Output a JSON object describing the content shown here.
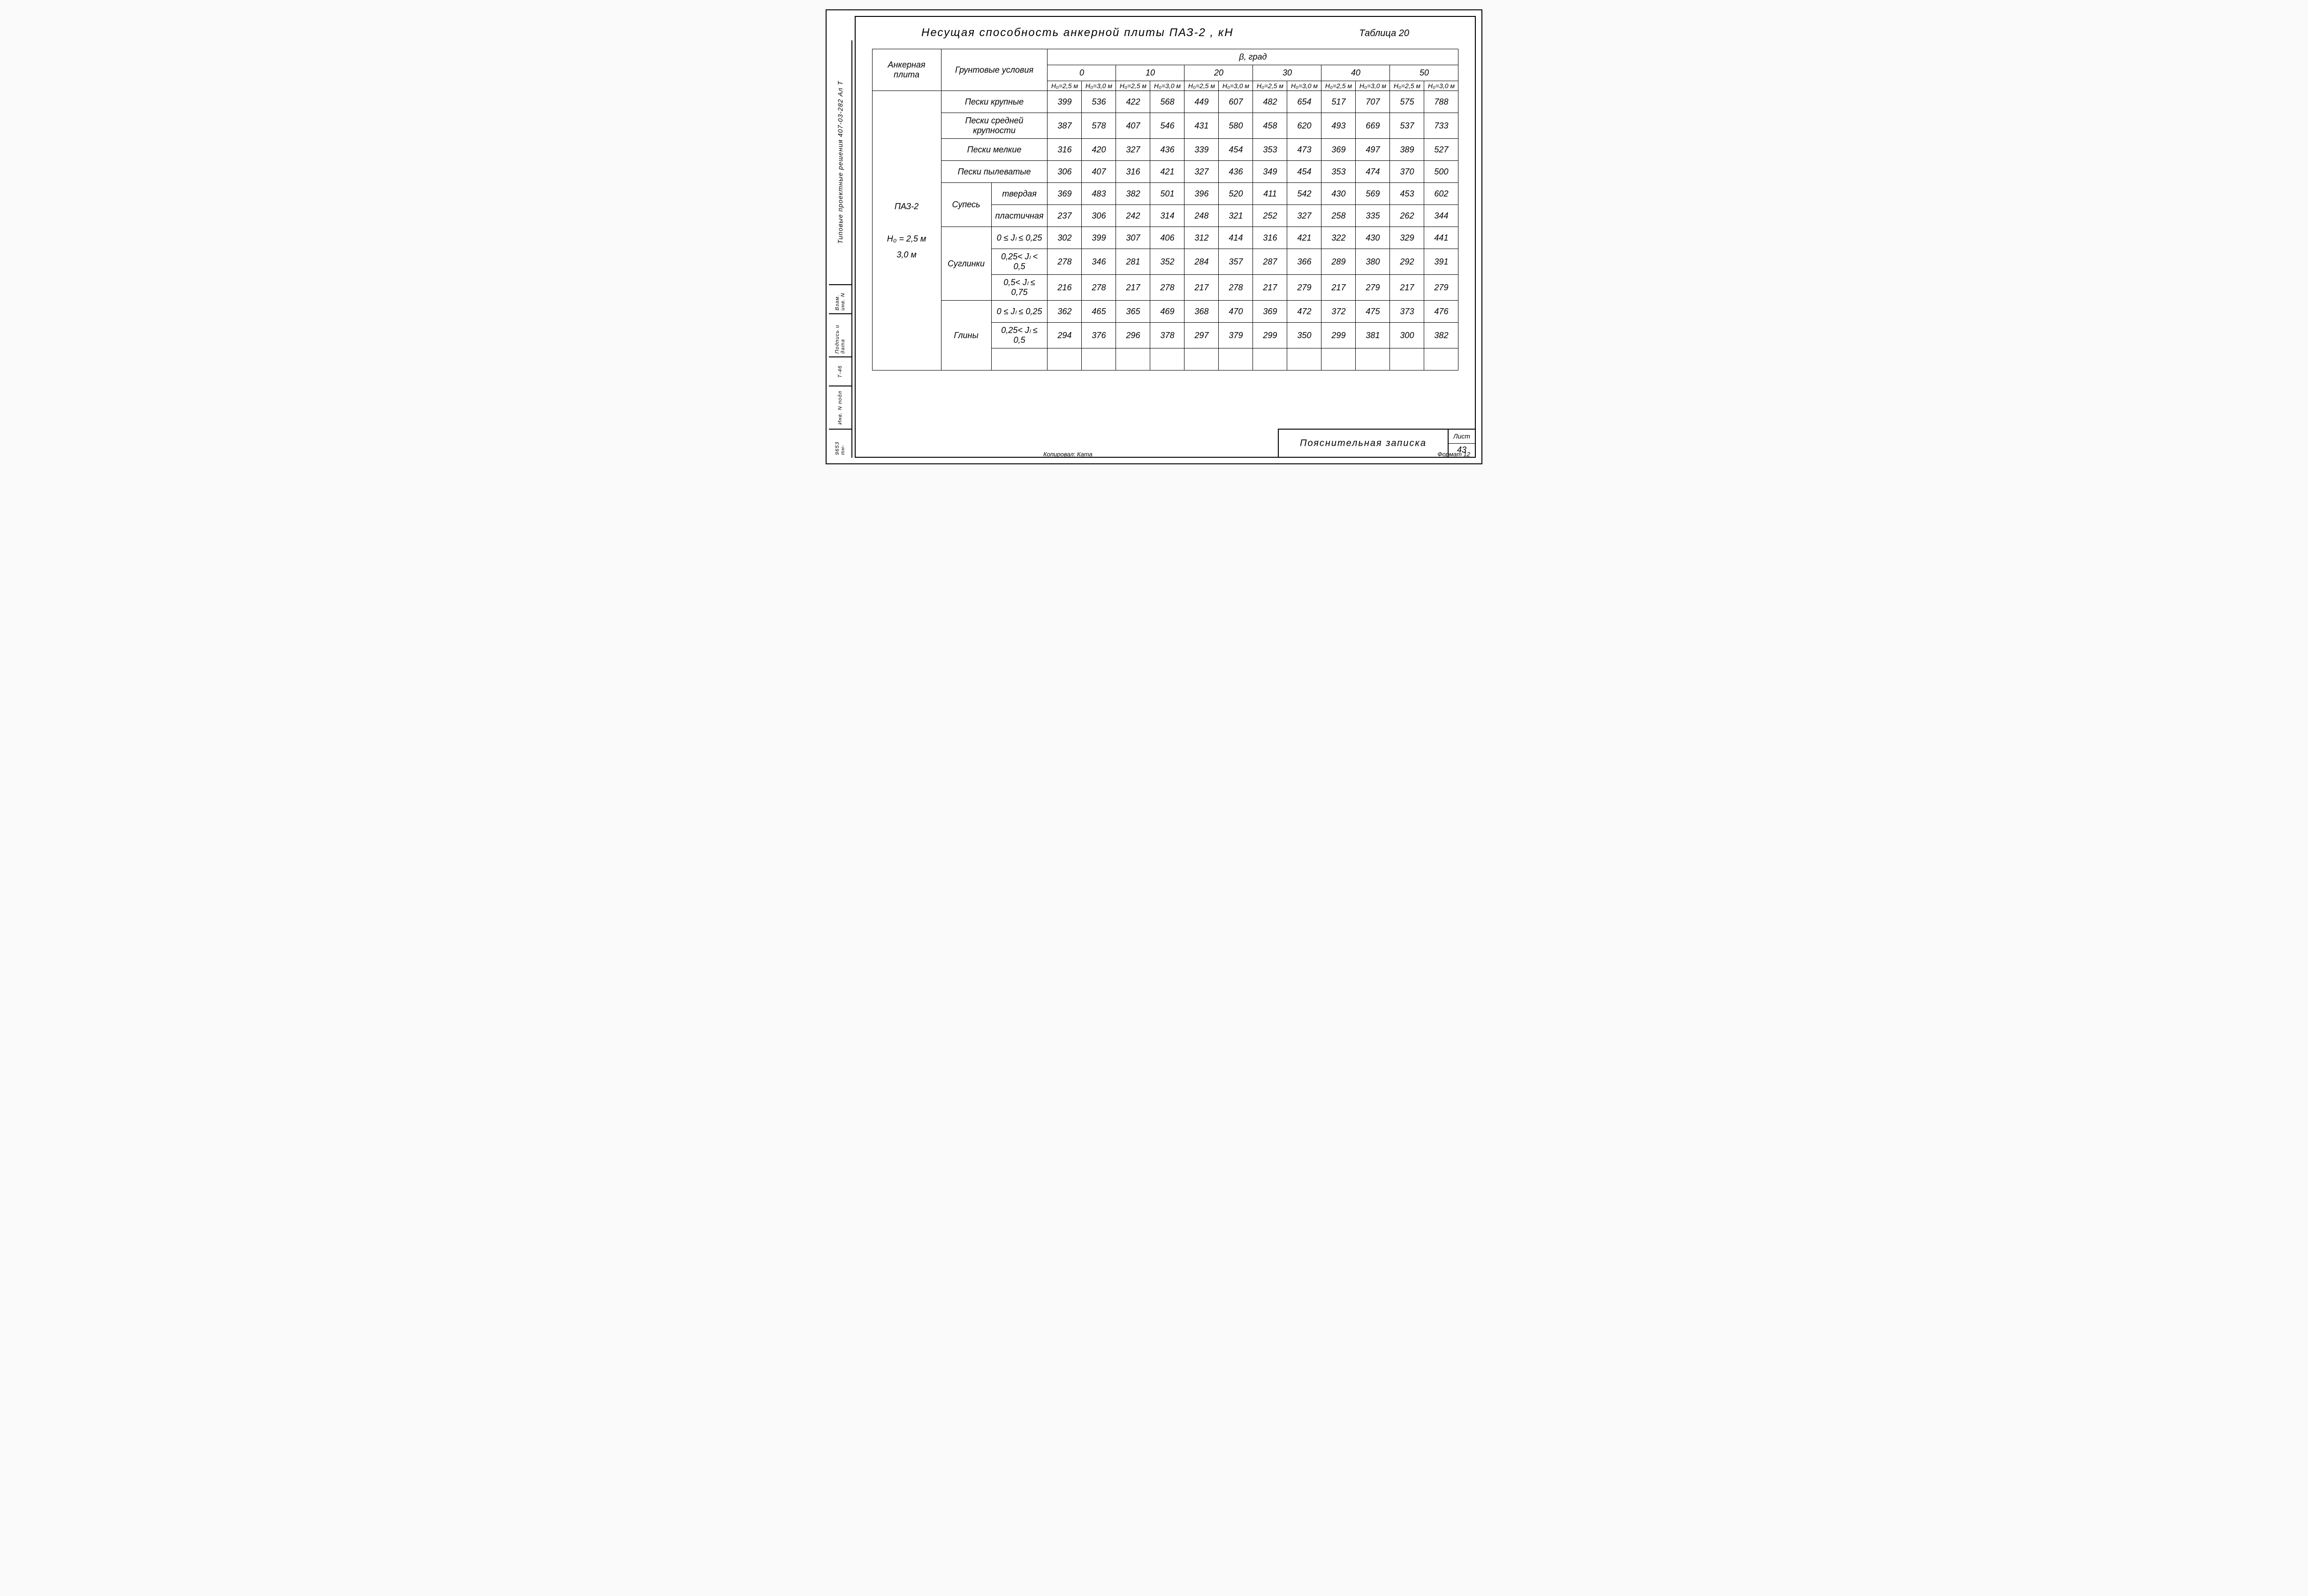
{
  "side": {
    "project_code": "Типовые проектные решения 407-03-282 Ал Т",
    "block1": "Инв. N подл",
    "block1b": "9653 тн-",
    "block2": "Подпись и дата",
    "block2b": "Т-46",
    "block3": "Взам. инв. N"
  },
  "header": {
    "title": "Несущая способность анкерной плиты ПАЗ-2 , кН",
    "table_label": "Таблица 20"
  },
  "table": {
    "col_plate": "Анкерная плита",
    "col_cond": "Грунтовые условия",
    "col_beta": "β, град",
    "angles": [
      "0",
      "10",
      "20",
      "30",
      "40",
      "50"
    ],
    "h_labels": [
      "H₀=2,5 м",
      "H₀=3,0 м"
    ],
    "plate_label": "ПАЗ-2",
    "plate_sub": "H₀ = 2,5 м\n      3,0 м",
    "rows": [
      {
        "cond": "Пески крупные",
        "span": 12,
        "vals": [
          "399",
          "536",
          "422",
          "568",
          "449",
          "607",
          "482",
          "654",
          "517",
          "707",
          "575",
          "788"
        ]
      },
      {
        "cond": "Пески средней крупности",
        "vals": [
          "387",
          "578",
          "407",
          "546",
          "431",
          "580",
          "458",
          "620",
          "493",
          "669",
          "537",
          "733"
        ]
      },
      {
        "cond": "Пески мелкие",
        "vals": [
          "316",
          "420",
          "327",
          "436",
          "339",
          "454",
          "353",
          "473",
          "369",
          "497",
          "389",
          "527"
        ]
      },
      {
        "cond": "Пески пылеватые",
        "vals": [
          "306",
          "407",
          "316",
          "421",
          "327",
          "436",
          "349",
          "454",
          "353",
          "474",
          "370",
          "500"
        ]
      },
      {
        "group": "Супесь",
        "grows": 2,
        "sub": "твердая",
        "vals": [
          "369",
          "483",
          "382",
          "501",
          "396",
          "520",
          "411",
          "542",
          "430",
          "569",
          "453",
          "602"
        ]
      },
      {
        "sub": "пластичная",
        "vals": [
          "237",
          "306",
          "242",
          "314",
          "248",
          "321",
          "252",
          "327",
          "258",
          "335",
          "262",
          "344"
        ]
      },
      {
        "group": "Суглинки",
        "grows": 3,
        "sub": "0 ≤ Jₗ ≤ 0,25",
        "vals": [
          "302",
          "399",
          "307",
          "406",
          "312",
          "414",
          "316",
          "421",
          "322",
          "430",
          "329",
          "441"
        ]
      },
      {
        "sub": "0,25< Jₗ < 0,5",
        "vals": [
          "278",
          "346",
          "281",
          "352",
          "284",
          "357",
          "287",
          "366",
          "289",
          "380",
          "292",
          "391"
        ]
      },
      {
        "sub": "0,5< Jₗ ≤ 0,75",
        "vals": [
          "216",
          "278",
          "217",
          "278",
          "217",
          "278",
          "217",
          "279",
          "217",
          "279",
          "217",
          "279"
        ]
      },
      {
        "group": "Глины",
        "grows": 3,
        "sub": "0 ≤ Jₗ ≤ 0,25",
        "vals": [
          "362",
          "465",
          "365",
          "469",
          "368",
          "470",
          "369",
          "472",
          "372",
          "475",
          "373",
          "476"
        ]
      },
      {
        "sub": "0,25< Jₗ ≤ 0,5",
        "vals": [
          "294",
          "376",
          "296",
          "378",
          "297",
          "379",
          "299",
          "350",
          "299",
          "381",
          "300",
          "382"
        ]
      },
      {
        "sub": "",
        "vals": [
          "",
          "",
          "",
          "",
          "",
          "",
          "",
          "",
          "",
          "",
          "",
          ""
        ]
      }
    ]
  },
  "stamp": {
    "desc": "Пояснительная записка",
    "sheet_word": "Лист",
    "sheet_no": "43"
  },
  "footer": {
    "copied": "Копировал: Ката",
    "format": "Формат 12"
  }
}
